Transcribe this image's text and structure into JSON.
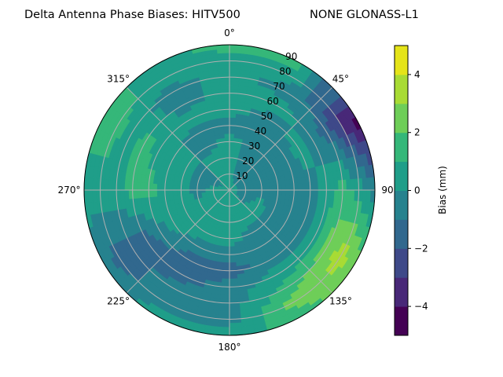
{
  "chart_data": {
    "type": "heatmap",
    "subtype": "polar-filled-contour",
    "title_left": "Delta Antenna Phase Biases: HITV500",
    "title_right": "NONE GLONASS-L1",
    "angular_tick_labels": [
      "0°",
      "45°",
      "90°",
      "135°",
      "180°",
      "225°",
      "270°",
      "315°"
    ],
    "angular_tick_values": [
      0,
      45,
      90,
      135,
      180,
      225,
      270,
      315
    ],
    "radial_tick_labels": [
      "10",
      "20",
      "30",
      "40",
      "50",
      "60",
      "70",
      "80",
      "90"
    ],
    "radial_tick_values": [
      10,
      20,
      30,
      40,
      50,
      60,
      70,
      80,
      90
    ],
    "azimuth_direction": "clockwise",
    "zero_location": "north",
    "grid": true,
    "colorbar": {
      "label": "Bias (mm)",
      "levels": [
        -5,
        -4,
        -3,
        -2,
        -1,
        0,
        1,
        2,
        3,
        4,
        5
      ],
      "tick_values": [
        4,
        2,
        0,
        -2,
        -4
      ],
      "tick_labels": [
        "4",
        "2",
        "0",
        "−2",
        "−4"
      ],
      "colors": [
        "#440154",
        "#482878",
        "#3e4989",
        "#31688e",
        "#26828e",
        "#1f9e89",
        "#35b779",
        "#6ece58",
        "#a8db34",
        "#e5e419"
      ],
      "position": "right"
    },
    "grid_azimuths": [
      0,
      30,
      60,
      90,
      120,
      150,
      180,
      210,
      240,
      270,
      300,
      330
    ],
    "grid_zeniths": [
      0,
      10,
      20,
      30,
      40,
      50,
      60,
      70,
      80,
      90
    ],
    "values": [
      [
        0.5,
        0.5,
        0.5,
        0.5,
        -0.5,
        0.5,
        0.5,
        0.5,
        0.5,
        1.5
      ],
      [
        0.5,
        -0.5,
        -0.5,
        -0.5,
        -0.5,
        -0.5,
        0.5,
        -0.5,
        0.5,
        1.5
      ],
      [
        0.5,
        -0.5,
        -0.5,
        -0.5,
        -0.5,
        0.5,
        -0.5,
        -1.5,
        -3.5,
        -4.5
      ],
      [
        0.5,
        -0.5,
        -0.5,
        -0.5,
        -0.5,
        -0.5,
        0.5,
        1.5,
        0.5,
        -0.5
      ],
      [
        0.5,
        -0.5,
        0.5,
        -0.5,
        -0.5,
        -0.5,
        0.5,
        2.5,
        3.5,
        2.5
      ],
      [
        0.5,
        0.5,
        0.5,
        -0.5,
        -0.5,
        -0.5,
        0.5,
        1.5,
        2.5,
        1.5
      ],
      [
        0.5,
        0.5,
        0.5,
        0.5,
        -0.5,
        -1.5,
        -0.5,
        -0.5,
        -0.5,
        0.5
      ],
      [
        0.5,
        0.5,
        0.5,
        0.5,
        -0.5,
        -1.5,
        -1.5,
        -0.5,
        -0.5,
        0.5
      ],
      [
        0.5,
        0.5,
        0.5,
        0.5,
        0.5,
        -0.5,
        -1.5,
        -1.5,
        -1.5,
        -0.5
      ],
      [
        0.5,
        0.5,
        -0.5,
        0.5,
        0.5,
        1.5,
        1.5,
        0.5,
        0.5,
        0.5
      ],
      [
        0.5,
        -0.5,
        -0.5,
        0.5,
        0.5,
        0.5,
        1.5,
        0.5,
        1.5,
        1.5
      ],
      [
        0.5,
        0.5,
        0.5,
        -0.5,
        -0.5,
        0.5,
        -0.5,
        -0.5,
        0.5,
        0.5
      ]
    ]
  }
}
